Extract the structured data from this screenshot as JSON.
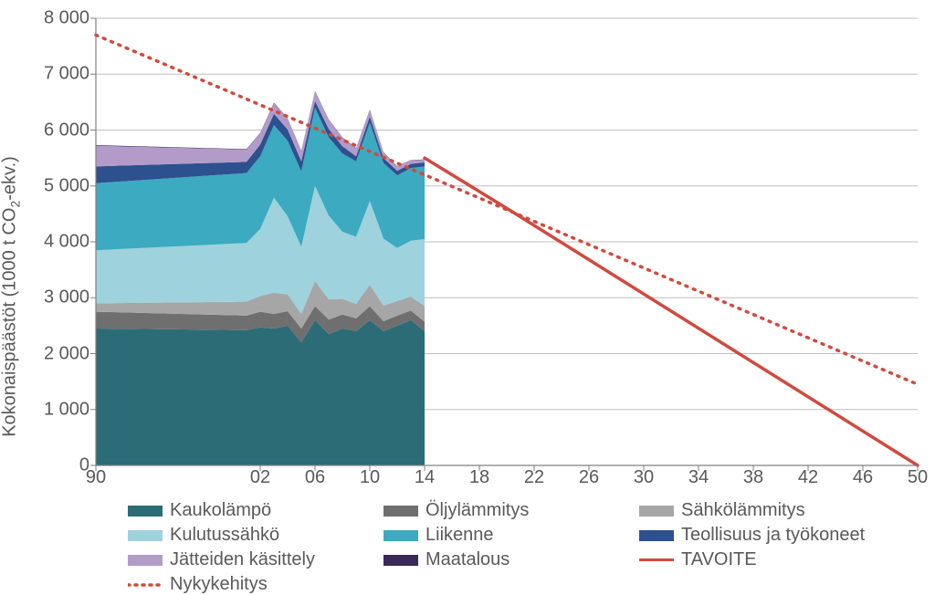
{
  "chart": {
    "type": "stacked-area-with-lines",
    "title_fontsize": 20,
    "label_fontsize": 20,
    "background_color": "#ffffff",
    "grid_color": "#bfbfbf",
    "axis_color": "#808080",
    "text_color": "#595959",
    "y_axis_title_html": "Kokonaispäästöt (1000 t CO<sub>2</sub>-ekv.)",
    "xlim": [
      1990,
      2050
    ],
    "ylim": [
      0,
      8000
    ],
    "x_ticks": [
      1990,
      2002,
      2006,
      2010,
      2014,
      2018,
      2022,
      2026,
      2030,
      2034,
      2038,
      2042,
      2046,
      2050
    ],
    "x_tick_labels": [
      "90",
      "02",
      "06",
      "10",
      "14",
      "18",
      "22",
      "26",
      "30",
      "34",
      "38",
      "42",
      "46",
      "50"
    ],
    "y_ticks": [
      0,
      1000,
      2000,
      3000,
      4000,
      5000,
      6000,
      7000,
      8000
    ],
    "y_tick_labels": [
      "0",
      "1 000",
      "2 000",
      "3 000",
      "4 000",
      "5 000",
      "6 000",
      "7 000",
      "8 000"
    ],
    "data_years": [
      1990,
      2001,
      2002,
      2003,
      2004,
      2005,
      2006,
      2007,
      2008,
      2009,
      2010,
      2011,
      2012,
      2013,
      2014
    ],
    "series": [
      {
        "key": "kaukolampo",
        "label": "Kaukolämpö",
        "color": "#2b6c77",
        "values": [
          2450,
          2420,
          2470,
          2450,
          2500,
          2200,
          2600,
          2350,
          2450,
          2400,
          2600,
          2400,
          2500,
          2600,
          2400
        ]
      },
      {
        "key": "oljylammitys",
        "label": "Öljylämmitys",
        "color": "#6f6f6f",
        "values": [
          300,
          260,
          280,
          260,
          260,
          250,
          250,
          260,
          250,
          230,
          250,
          180,
          180,
          170,
          170
        ]
      },
      {
        "key": "sahkolammitys",
        "label": "Sähkölämmitys",
        "color": "#a6a6a6",
        "values": [
          150,
          250,
          280,
          380,
          300,
          260,
          450,
          360,
          280,
          260,
          380,
          280,
          260,
          250,
          280
        ]
      },
      {
        "key": "kulutussahko",
        "label": "Kulutussähkö",
        "color": "#9ed2dd",
        "values": [
          950,
          1050,
          1200,
          1700,
          1400,
          1200,
          1700,
          1500,
          1200,
          1200,
          1500,
          1200,
          950,
          1000,
          1200
        ]
      },
      {
        "key": "liikenne",
        "label": "Liikenne",
        "color": "#3caac0",
        "values": [
          1200,
          1250,
          1300,
          1300,
          1350,
          1350,
          1400,
          1400,
          1400,
          1350,
          1400,
          1350,
          1300,
          1300,
          1300
        ]
      },
      {
        "key": "teollisuus",
        "label": "Teollisuus ja työkoneet",
        "color": "#2d508f",
        "values": [
          300,
          200,
          210,
          200,
          200,
          180,
          120,
          150,
          130,
          90,
          110,
          90,
          80,
          75,
          70
        ]
      },
      {
        "key": "jatteiden",
        "label": "Jätteiden käsittely",
        "color": "#b39bc9",
        "values": [
          370,
          220,
          200,
          190,
          190,
          180,
          170,
          160,
          150,
          140,
          120,
          100,
          80,
          60,
          50
        ]
      },
      {
        "key": "maatalous",
        "label": "Maatalous",
        "color": "#3a2a59",
        "values": [
          10,
          9,
          9,
          9,
          8,
          8,
          8,
          8,
          7,
          7,
          7,
          7,
          6,
          6,
          6
        ]
      }
    ],
    "tavoite": {
      "label": "TAVOITE",
      "color": "#d04a3f",
      "line_width": 3.5,
      "points": [
        [
          2014,
          5500
        ],
        [
          2020,
          4600
        ],
        [
          2050,
          0
        ]
      ]
    },
    "nykykehitys": {
      "label": "Nykykehitys",
      "color": "#d04a3f",
      "dash": "dotted",
      "line_width": 3.5,
      "points": [
        [
          1990,
          7700
        ],
        [
          2050,
          1450
        ]
      ]
    },
    "legend_order": [
      "kaukolampo",
      "oljylammitys",
      "sahkolammitys",
      "kulutussahko",
      "liikenne",
      "teollisuus",
      "jatteiden",
      "maatalous",
      "TAVOITE",
      "NYKY"
    ]
  }
}
